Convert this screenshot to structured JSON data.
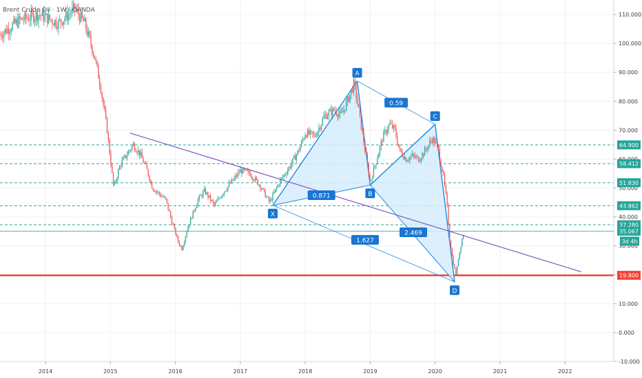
{
  "symbol_text": "Brent Crude Oil · 1W · OANDA",
  "colors": {
    "up": "#26a69a",
    "down": "#ef5350",
    "pattern_fill": "#d6ecfb",
    "pattern_line": "#1e88e5",
    "label_bg": "#1976d2",
    "level_green": "#26a69a",
    "support_red": "#f44336",
    "trendline": "#7e57c2",
    "grid": "#eef1f5"
  },
  "chart_data": {
    "type": "candlestick",
    "y_axis": {
      "range": [
        -10,
        115
      ],
      "ticks": [
        -10,
        0,
        10,
        20,
        30,
        40,
        50,
        60,
        70,
        80,
        90,
        100,
        110
      ],
      "tick_labels": [
        "-10.000",
        "0.000",
        "10.000",
        "20.000",
        "30.000",
        "40.000",
        "50.000",
        "60.000",
        "70.000",
        "80.000",
        "90.000",
        "100.000",
        "110.000"
      ]
    },
    "x_axis": {
      "range": [
        2013.3,
        2022.75
      ],
      "ticks": [
        2014,
        2015,
        2016,
        2017,
        2018,
        2019,
        2020,
        2021,
        2022
      ],
      "tick_labels": [
        "2014",
        "2015",
        "2016",
        "2017",
        "2018",
        "2019",
        "2020",
        "2021",
        "2022"
      ]
    },
    "price_path": [
      [
        2013.3,
        103
      ],
      [
        2013.6,
        108
      ],
      [
        2013.9,
        110
      ],
      [
        2014.2,
        107
      ],
      [
        2014.45,
        112
      ],
      [
        2014.6,
        107
      ],
      [
        2014.75,
        96
      ],
      [
        2014.85,
        85
      ],
      [
        2014.95,
        70
      ],
      [
        2015.05,
        50
      ],
      [
        2015.15,
        58
      ],
      [
        2015.35,
        65
      ],
      [
        2015.45,
        62
      ],
      [
        2015.55,
        57
      ],
      [
        2015.65,
        50
      ],
      [
        2015.75,
        48
      ],
      [
        2015.85,
        46
      ],
      [
        2015.95,
        38
      ],
      [
        2016.05,
        31
      ],
      [
        2016.1,
        29
      ],
      [
        2016.2,
        37
      ],
      [
        2016.35,
        46
      ],
      [
        2016.45,
        49
      ],
      [
        2016.6,
        44
      ],
      [
        2016.75,
        49
      ],
      [
        2016.9,
        53
      ],
      [
        2017.0,
        56
      ],
      [
        2017.15,
        55
      ],
      [
        2017.3,
        51
      ],
      [
        2017.45,
        45
      ],
      [
        2017.6,
        52
      ],
      [
        2017.75,
        57
      ],
      [
        2017.9,
        63
      ],
      [
        2018.0,
        69
      ],
      [
        2018.15,
        68
      ],
      [
        2018.3,
        75
      ],
      [
        2018.45,
        77
      ],
      [
        2018.55,
        75
      ],
      [
        2018.65,
        80
      ],
      [
        2018.75,
        86
      ],
      [
        2018.8,
        80
      ],
      [
        2018.9,
        66
      ],
      [
        2018.95,
        59
      ],
      [
        2019.0,
        52
      ],
      [
        2019.1,
        60
      ],
      [
        2019.2,
        68
      ],
      [
        2019.3,
        72
      ],
      [
        2019.38,
        70
      ],
      [
        2019.45,
        63
      ],
      [
        2019.55,
        60
      ],
      [
        2019.65,
        61
      ],
      [
        2019.75,
        60
      ],
      [
        2019.85,
        63
      ],
      [
        2019.95,
        67
      ],
      [
        2020.0,
        66
      ],
      [
        2020.05,
        63
      ],
      [
        2020.12,
        55
      ],
      [
        2020.18,
        45
      ],
      [
        2020.22,
        33
      ],
      [
        2020.27,
        25
      ],
      [
        2020.32,
        20
      ],
      [
        2020.36,
        26
      ],
      [
        2020.42,
        33
      ],
      [
        2020.45,
        35
      ]
    ],
    "harmonic_pattern": {
      "points": [
        {
          "name": "X",
          "date": 2017.5,
          "price": 44
        },
        {
          "name": "A",
          "date": 2018.8,
          "price": 87
        },
        {
          "name": "B",
          "date": 2019.0,
          "price": 51
        },
        {
          "name": "C",
          "date": 2020.0,
          "price": 72
        },
        {
          "name": "D",
          "date": 2020.3,
          "price": 17.5
        }
      ],
      "ratios": [
        {
          "label": "0.59",
          "from": "A",
          "to": "C"
        },
        {
          "label": "0.871",
          "from": "X",
          "to": "B"
        },
        {
          "label": "2.469",
          "from": "B",
          "to": "D"
        },
        {
          "label": "1.627",
          "from": "X",
          "to": "D"
        }
      ]
    },
    "trendline": {
      "start": {
        "date": 2015.3,
        "price": 69
      },
      "end": {
        "date": 2022.25,
        "price": 21
      }
    },
    "horizontal_levels": [
      {
        "price": 64.9,
        "label": "64.900",
        "style": "dashed"
      },
      {
        "price": 58.412,
        "label": "58.412",
        "style": "dashed"
      },
      {
        "price": 51.83,
        "label": "51.830",
        "style": "dashed"
      },
      {
        "price": 43.862,
        "label": "43.862",
        "style": "dashed"
      },
      {
        "price": 37.28,
        "label": "37.280",
        "style": "dashed"
      },
      {
        "price": 19.8,
        "label": "19.800",
        "style": "solid",
        "color": "#f44336"
      }
    ],
    "current_price": {
      "price": 35.067,
      "label": "35.067"
    },
    "countdown": "3d 4h",
    "grid": true
  }
}
